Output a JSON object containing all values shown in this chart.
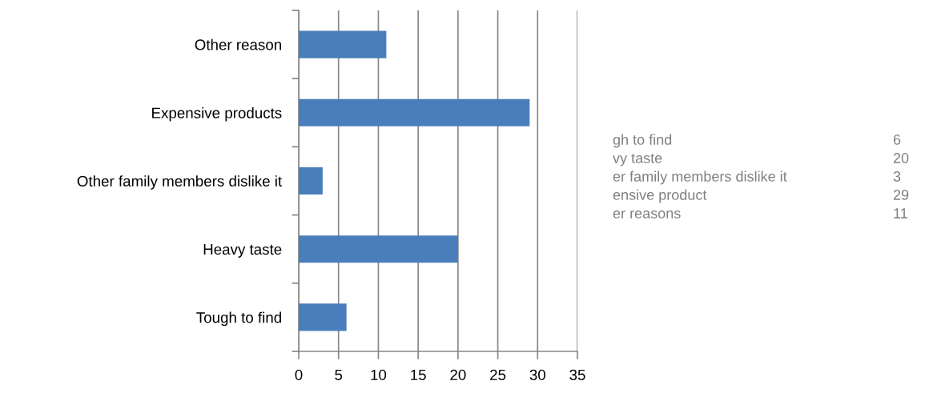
{
  "chart_data": {
    "type": "bar",
    "orientation": "horizontal",
    "categories": [
      "Other reason",
      "Expensive products",
      "Other family members dislike it",
      "Heavy taste",
      "Tough to find"
    ],
    "values": [
      11,
      29,
      3,
      20,
      6
    ],
    "color": "#4a7ebb",
    "xlim": [
      0,
      35
    ],
    "xticks": [
      0,
      5,
      10,
      15,
      20,
      25,
      30,
      35
    ],
    "grid": "x",
    "annotations": [
      "gh to find",
      "6",
      "vy taste",
      "20",
      "er family members dislike it",
      "3",
      "ensive product",
      "29",
      "er reasons",
      "11"
    ]
  }
}
